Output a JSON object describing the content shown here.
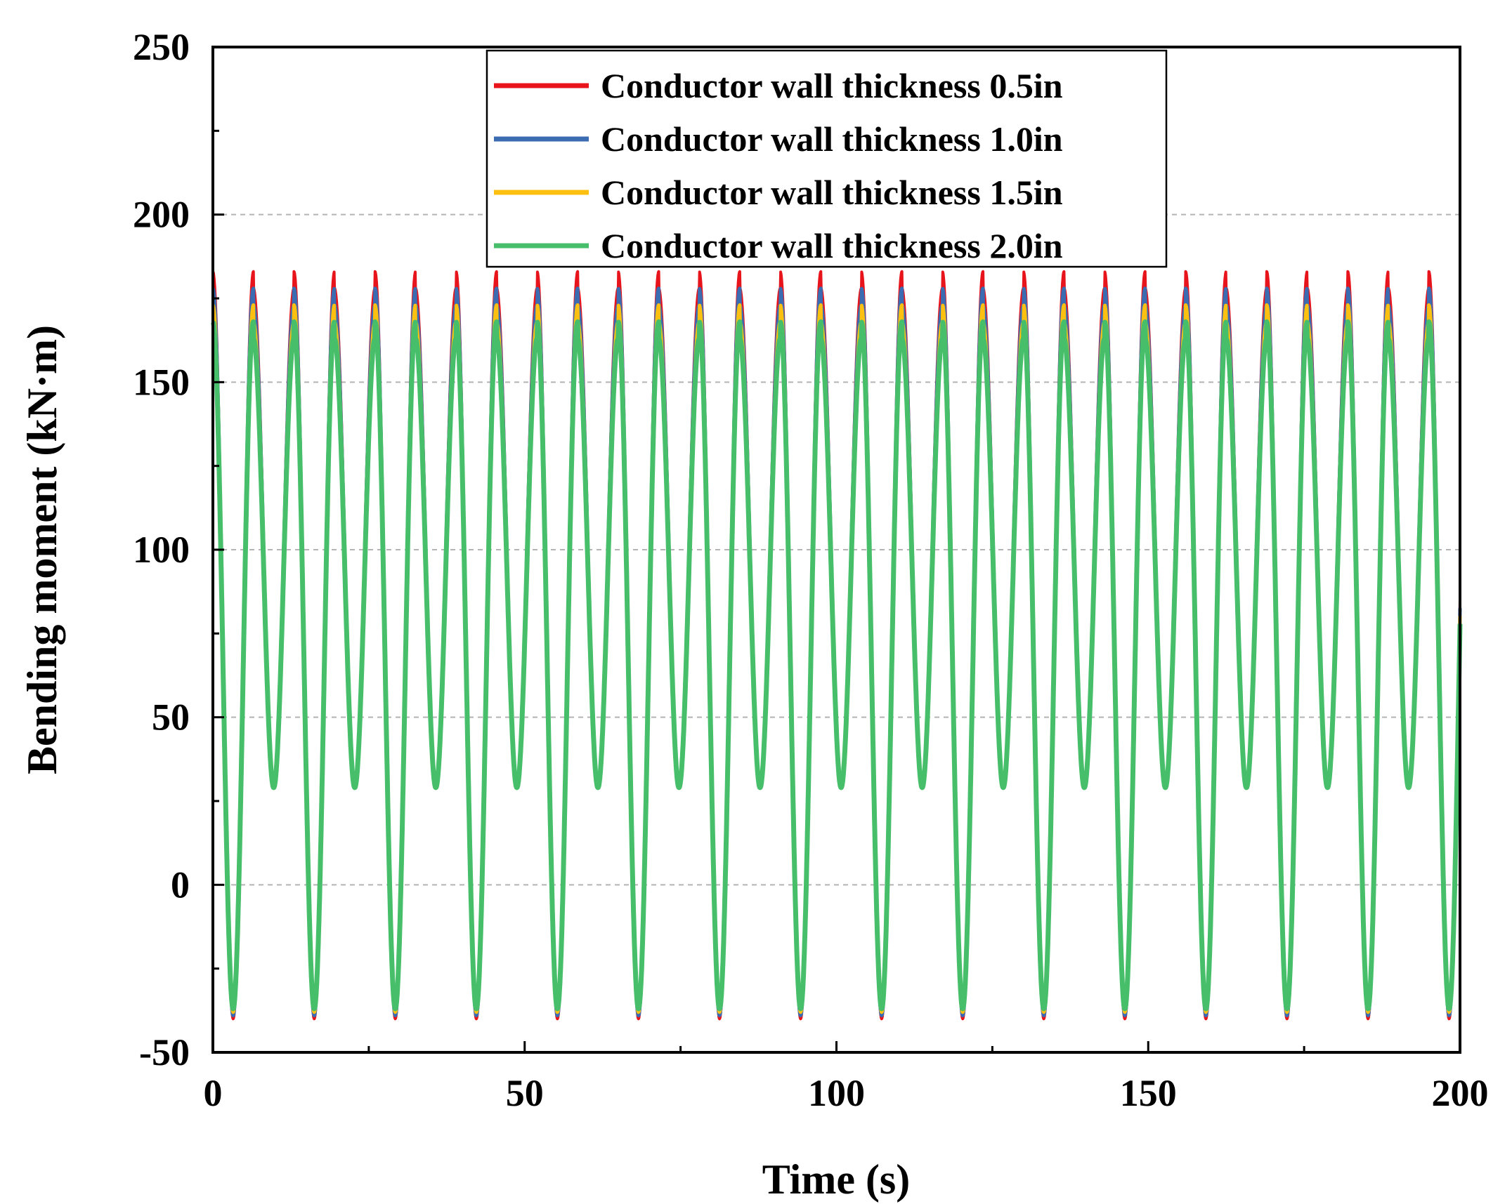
{
  "chart_data": {
    "type": "line",
    "title": "",
    "xlabel": "Time (s)",
    "ylabel": "Bending moment (kN·m)",
    "xlim": [
      0,
      200
    ],
    "ylim": [
      -50,
      250
    ],
    "xticks": [
      0,
      50,
      100,
      150,
      200
    ],
    "xtick_labels": [
      "0",
      "50",
      "100",
      "150",
      "200"
    ],
    "yticks": [
      -50,
      0,
      50,
      100,
      150,
      200,
      250
    ],
    "ytick_labels": [
      "-50",
      "0",
      "50",
      "100",
      "150",
      "200",
      "250"
    ],
    "grid": "dashed horizontal at y = 0, 50, 100, 150, 200",
    "legend_position": "top-center",
    "period_s": 6.5,
    "series": [
      {
        "name": "Conductor wall thickness 0.5in",
        "color": "#e8141c",
        "peak_high": 183,
        "peak_low": 178,
        "trough_shallow": 31,
        "trough_deep": -40
      },
      {
        "name": "Conductor wall thickness 1.0in",
        "color": "#3b6bb0",
        "peak_high": 178,
        "peak_low": 173,
        "trough_shallow": 30,
        "trough_deep": -39
      },
      {
        "name": "Conductor wall thickness 1.5in",
        "color": "#fdc010",
        "peak_high": 173,
        "peak_low": 168,
        "trough_shallow": 29,
        "trough_deep": -38
      },
      {
        "name": "Conductor wall thickness 2.0in",
        "color": "#47bf6a",
        "peak_high": 168,
        "peak_low": 163,
        "trough_shallow": 29,
        "trough_deep": -37
      }
    ]
  }
}
